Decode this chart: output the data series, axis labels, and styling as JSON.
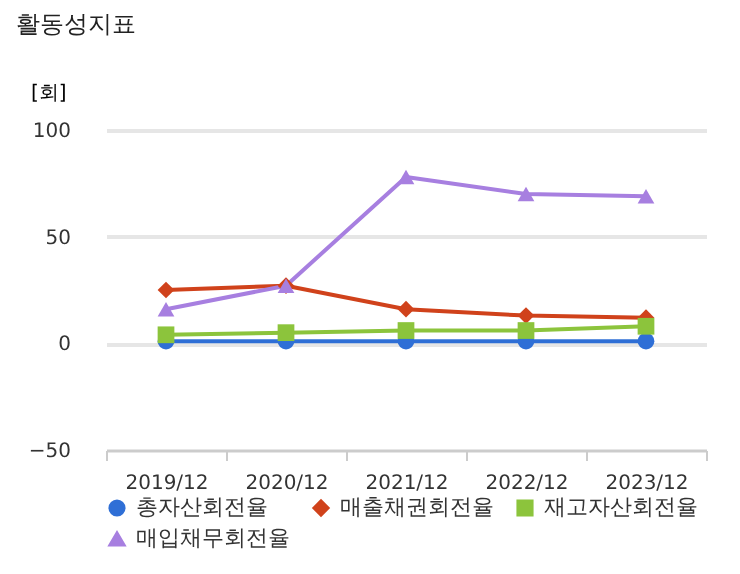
{
  "chart_data": {
    "type": "line",
    "title": "활동성지표",
    "ylabel": "[회]",
    "categories": [
      "2019/12",
      "2020/12",
      "2021/12",
      "2022/12",
      "2023/12"
    ],
    "series": [
      {
        "name": "총자산회전율",
        "color": "#2f6fd6",
        "marker": "circle",
        "values": [
          1,
          1,
          1,
          1,
          1
        ]
      },
      {
        "name": "매출채권회전율",
        "color": "#d0421b",
        "marker": "diamond",
        "values": [
          25,
          27,
          16,
          13,
          12
        ]
      },
      {
        "name": "재고자산회전율",
        "color": "#8cc43c",
        "marker": "square",
        "values": [
          4,
          5,
          6,
          6,
          8
        ]
      },
      {
        "name": "매입채무회전율",
        "color": "#a77fe0",
        "marker": "triangle",
        "values": [
          16,
          27,
          78,
          70,
          69
        ]
      }
    ],
    "ylim": [
      -50,
      100
    ],
    "yticks": [
      -50,
      0,
      50,
      100
    ],
    "grid": "y",
    "legend": "bottom"
  }
}
